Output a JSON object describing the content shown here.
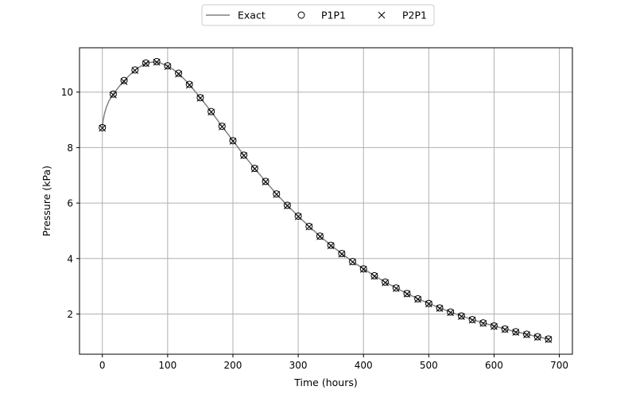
{
  "chart_data": {
    "type": "line",
    "xlabel": "Time (hours)",
    "ylabel": "Pressure (kPa)",
    "xlim": [
      -35,
      720
    ],
    "ylim": [
      0.55,
      11.6
    ],
    "xticks": [
      0,
      100,
      200,
      300,
      400,
      500,
      600,
      700
    ],
    "yticks": [
      2,
      4,
      6,
      8,
      10
    ],
    "grid": true,
    "legend_position": "top-center",
    "colors": {
      "exact": "#808080",
      "markers": "#000000",
      "grid": "#b0b0b0"
    },
    "series": [
      {
        "name": "Exact",
        "style": "line",
        "x": [
          0,
          1,
          3,
          6,
          10,
          16.7,
          25,
          33.3,
          50,
          66.7,
          83.3,
          100,
          116.7,
          133.3,
          150,
          166.7,
          183.3,
          200,
          216.7,
          233.3,
          250,
          266.7,
          283.3,
          300,
          316.7,
          333.3,
          350,
          366.7,
          383.3,
          400,
          416.7,
          433.3,
          450,
          466.7,
          483.3,
          500,
          516.7,
          533.3,
          550,
          566.7,
          583.3,
          600,
          616.7,
          633.3,
          650,
          666.7,
          683.3
        ],
        "y": [
          8.72,
          8.95,
          9.2,
          9.45,
          9.68,
          9.93,
          10.18,
          10.42,
          10.8,
          11.05,
          11.1,
          10.95,
          10.68,
          10.28,
          9.8,
          9.3,
          8.77,
          8.25,
          7.73,
          7.25,
          6.78,
          6.33,
          5.92,
          5.53,
          5.16,
          4.81,
          4.48,
          4.18,
          3.89,
          3.63,
          3.38,
          3.15,
          2.94,
          2.74,
          2.55,
          2.38,
          2.22,
          2.07,
          1.93,
          1.8,
          1.68,
          1.57,
          1.46,
          1.36,
          1.27,
          1.18,
          1.1
        ]
      },
      {
        "name": "P1P1",
        "style": "circle",
        "x": [
          0,
          16.7,
          33.3,
          50,
          66.7,
          83.3,
          100,
          116.7,
          133.3,
          150,
          166.7,
          183.3,
          200,
          216.7,
          233.3,
          250,
          266.7,
          283.3,
          300,
          316.7,
          333.3,
          350,
          366.7,
          383.3,
          400,
          416.7,
          433.3,
          450,
          466.7,
          483.3,
          500,
          516.7,
          533.3,
          550,
          566.7,
          583.3,
          600,
          616.7,
          633.3,
          650,
          666.7,
          683.3
        ],
        "y": [
          8.72,
          9.93,
          10.42,
          10.8,
          11.05,
          11.1,
          10.95,
          10.68,
          10.28,
          9.8,
          9.3,
          8.77,
          8.25,
          7.73,
          7.25,
          6.78,
          6.33,
          5.92,
          5.53,
          5.16,
          4.81,
          4.48,
          4.18,
          3.89,
          3.63,
          3.38,
          3.15,
          2.94,
          2.74,
          2.55,
          2.38,
          2.22,
          2.07,
          1.93,
          1.8,
          1.68,
          1.57,
          1.46,
          1.36,
          1.27,
          1.18,
          1.1
        ]
      },
      {
        "name": "P2P1",
        "style": "x",
        "x": [
          0,
          16.7,
          33.3,
          50,
          66.7,
          83.3,
          100,
          116.7,
          133.3,
          150,
          166.7,
          183.3,
          200,
          216.7,
          233.3,
          250,
          266.7,
          283.3,
          300,
          316.7,
          333.3,
          350,
          366.7,
          383.3,
          400,
          416.7,
          433.3,
          450,
          466.7,
          483.3,
          500,
          516.7,
          533.3,
          550,
          566.7,
          583.3,
          600,
          616.7,
          633.3,
          650,
          666.7,
          683.3
        ],
        "y": [
          8.7,
          9.9,
          10.38,
          10.78,
          11.03,
          11.08,
          10.92,
          10.65,
          10.25,
          9.78,
          9.28,
          8.75,
          8.23,
          7.71,
          7.23,
          6.76,
          6.31,
          5.9,
          5.51,
          5.14,
          4.79,
          4.46,
          4.16,
          3.87,
          3.61,
          3.36,
          3.13,
          2.92,
          2.72,
          2.53,
          2.36,
          2.2,
          2.05,
          1.91,
          1.78,
          1.66,
          1.55,
          1.44,
          1.34,
          1.25,
          1.16,
          1.08
        ]
      }
    ]
  }
}
